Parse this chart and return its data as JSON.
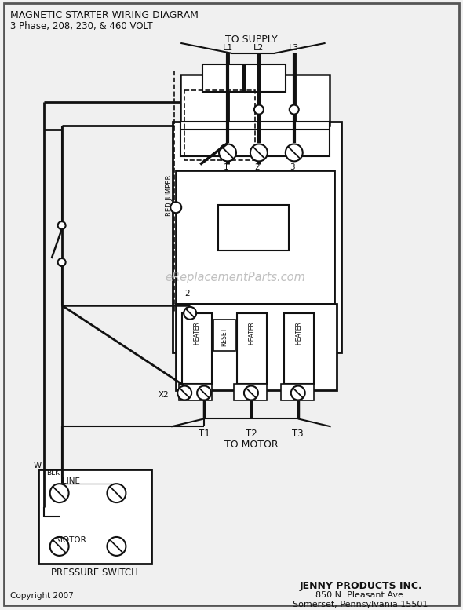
{
  "title_line1": "MAGNETIC STARTER WIRING DIAGRAM",
  "title_line2": "3 Phase; 208, 230, & 460 VOLT",
  "to_supply": "TO SUPPLY",
  "to_motor": "TO MOTOR",
  "copyright": "Copyright 2007",
  "company_line1": "JENNY PRODUCTS INC.",
  "company_line2": "850 N. Pleasant Ave.",
  "company_line3": "Somerset, Pennsylvania 15501",
  "watermark": "eReplacementParts.com",
  "pressure_switch_label": "PRESSURE SWITCH",
  "red_jumper": "RED JUMPER",
  "reset_label": "RESET",
  "heater_label": "HEATER",
  "line_label": "LINE",
  "motor_label": "MOTOR",
  "w_label": "W",
  "blk_label": "BLK",
  "x2_label": "X2",
  "l1": "L1",
  "l2": "L2",
  "l3": "L3",
  "t1": "T1",
  "t2": "T2",
  "t3": "T3",
  "num1": "1",
  "num2": "2",
  "num3": "3",
  "bg_color": "#f0f0f0",
  "line_color": "#111111"
}
